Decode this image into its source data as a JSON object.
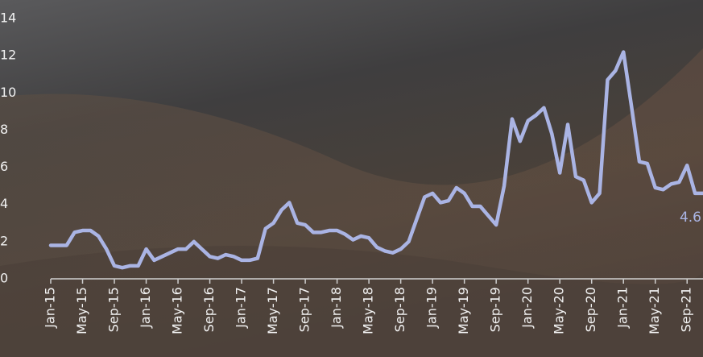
{
  "chart_data": {
    "type": "line",
    "categories": [
      "Jan-15",
      null,
      null,
      null,
      "May-15",
      null,
      null,
      null,
      "Sep-15",
      null,
      null,
      null,
      "Jan-16",
      null,
      null,
      null,
      "May-16",
      null,
      null,
      null,
      "Sep-16",
      null,
      null,
      null,
      "Jan-17",
      null,
      null,
      null,
      "May-17",
      null,
      null,
      null,
      "Sep-17",
      null,
      null,
      null,
      "Jan-18",
      null,
      null,
      null,
      "May-18",
      null,
      null,
      null,
      "Sep-18",
      null,
      null,
      null,
      "Jan-19",
      null,
      null,
      null,
      "May-19",
      null,
      null,
      null,
      "Sep-19",
      null,
      null,
      null,
      "Jan-20",
      null,
      null,
      null,
      "May-20",
      null,
      null,
      null,
      "Sep-20",
      null,
      null,
      null,
      "Jan-21",
      null,
      null,
      null,
      "May-21",
      null,
      null,
      null,
      "Sep-21",
      null,
      null
    ],
    "values": [
      1.8,
      1.8,
      1.8,
      2.5,
      2.6,
      2.6,
      2.3,
      1.6,
      0.7,
      0.6,
      0.7,
      0.7,
      1.6,
      1.0,
      1.2,
      1.4,
      1.6,
      1.6,
      2.0,
      1.6,
      1.2,
      1.1,
      1.3,
      1.2,
      1.0,
      1.0,
      1.1,
      2.7,
      3.0,
      3.7,
      4.1,
      3.0,
      2.9,
      2.5,
      2.5,
      2.6,
      2.6,
      2.4,
      2.1,
      2.3,
      2.2,
      1.7,
      1.5,
      1.4,
      1.6,
      2.0,
      3.2,
      4.4,
      4.6,
      4.1,
      4.2,
      4.9,
      4.6,
      3.9,
      3.9,
      3.4,
      2.9,
      5.0,
      8.6,
      7.4,
      8.5,
      8.8,
      9.2,
      7.8,
      5.7,
      8.3,
      5.5,
      5.3,
      4.1,
      4.6,
      10.7,
      11.2,
      12.2,
      9.3,
      6.3,
      6.2,
      4.9,
      4.8,
      5.1,
      5.2,
      6.1,
      4.6,
      4.6
    ],
    "color": "#aab4e4",
    "ylim": [
      0,
      14
    ],
    "yticks": [
      0,
      2,
      4,
      6,
      8,
      10,
      12,
      14
    ],
    "grid": false
  }
}
